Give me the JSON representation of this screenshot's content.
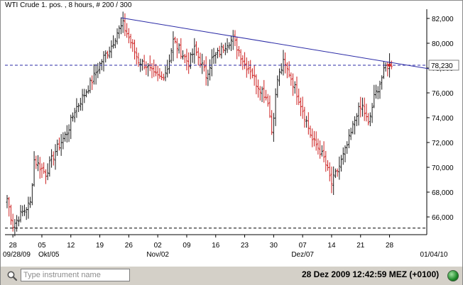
{
  "header": {
    "title": "WTI Crude 1. pos. , 8 hours, # 200 / 300"
  },
  "statusbar": {
    "search_placeholder": "Type instrument name",
    "datetime": "28 Dez 2009 12:42:59  MEZ (+0100)",
    "indicator_icon": "green-status-led"
  },
  "colors": {
    "up_bar": "#1a1a1a",
    "down_bar": "#cc1f1f",
    "trendline": "#2a2aa6",
    "price_line": "#2a2aa6",
    "bottom_line": "#000000",
    "marker": "#cc1f1f"
  },
  "chart_data": {
    "type": "ohlc",
    "title": "WTI Crude 1. pos. , 8 hours, # 200 / 300",
    "interval": "8 hours",
    "ylim": [
      65000,
      82600
    ],
    "y_ticks": [
      "82,000",
      "80,000",
      "78,000",
      "76,000",
      "74,000",
      "72,000",
      "70,000",
      "68,000",
      "66,000"
    ],
    "y_tick_values": [
      82000,
      80000,
      78000,
      76000,
      74000,
      72000,
      70000,
      68000,
      66000
    ],
    "x_ticks": [
      {
        "label": "28",
        "i": 3
      },
      {
        "label": "05",
        "i": 18
      },
      {
        "label": "12",
        "i": 33
      },
      {
        "label": "19",
        "i": 48
      },
      {
        "label": "26",
        "i": 63
      },
      {
        "label": "02",
        "i": 78
      },
      {
        "label": "09",
        "i": 93
      },
      {
        "label": "16",
        "i": 108
      },
      {
        "label": "23",
        "i": 123
      },
      {
        "label": "30",
        "i": 138
      },
      {
        "label": "07",
        "i": 153
      },
      {
        "label": "14",
        "i": 168
      },
      {
        "label": "21",
        "i": 183
      },
      {
        "label": "28",
        "i": 198
      }
    ],
    "x_month_labels": [
      {
        "label": "09/28/09",
        "i": 3
      },
      {
        "label": "Okt/05",
        "i": 18
      },
      {
        "label": "Nov/02",
        "i": 78
      },
      {
        "label": "Dez/07",
        "i": 153
      },
      {
        "label": "01/04/10",
        "i": 223
      }
    ],
    "current_price": {
      "value": 78230,
      "label": "78,230"
    },
    "bottom_line": {
      "value": 65100
    },
    "trendline": {
      "from": {
        "i": 59,
        "value": 82050
      },
      "to": {
        "i": 222,
        "value": 77850
      }
    },
    "ohlc_anchor_closes": [
      [
        0,
        67500
      ],
      [
        3,
        65300
      ],
      [
        8,
        66400
      ],
      [
        12,
        67100
      ],
      [
        14,
        70600
      ],
      [
        20,
        69500
      ],
      [
        25,
        71300
      ],
      [
        31,
        72800
      ],
      [
        35,
        74600
      ],
      [
        40,
        75900
      ],
      [
        44,
        77000
      ],
      [
        49,
        78600
      ],
      [
        54,
        79800
      ],
      [
        57,
        80900
      ],
      [
        60,
        81500
      ],
      [
        64,
        80100
      ],
      [
        68,
        78600
      ],
      [
        72,
        78200
      ],
      [
        76,
        77400
      ],
      [
        80,
        77200
      ],
      [
        83,
        78000
      ],
      [
        86,
        80200
      ],
      [
        90,
        79300
      ],
      [
        94,
        78400
      ],
      [
        97,
        79500
      ],
      [
        100,
        78600
      ],
      [
        103,
        77400
      ],
      [
        106,
        78700
      ],
      [
        110,
        79300
      ],
      [
        114,
        80100
      ],
      [
        117,
        80300
      ],
      [
        120,
        79400
      ],
      [
        123,
        78300
      ],
      [
        126,
        77900
      ],
      [
        129,
        76800
      ],
      [
        132,
        76200
      ],
      [
        135,
        75400
      ],
      [
        137,
        72900
      ],
      [
        140,
        77100
      ],
      [
        143,
        78400
      ],
      [
        146,
        77600
      ],
      [
        149,
        76400
      ],
      [
        152,
        75100
      ],
      [
        155,
        73700
      ],
      [
        158,
        72200
      ],
      [
        161,
        71600
      ],
      [
        164,
        70700
      ],
      [
        168,
        68700
      ],
      [
        172,
        70100
      ],
      [
        175,
        71300
      ],
      [
        178,
        72700
      ],
      [
        181,
        74400
      ],
      [
        184,
        74900
      ],
      [
        187,
        73400
      ],
      [
        190,
        75600
      ],
      [
        193,
        76800
      ],
      [
        196,
        78100
      ],
      [
        198,
        78300
      ]
    ]
  }
}
